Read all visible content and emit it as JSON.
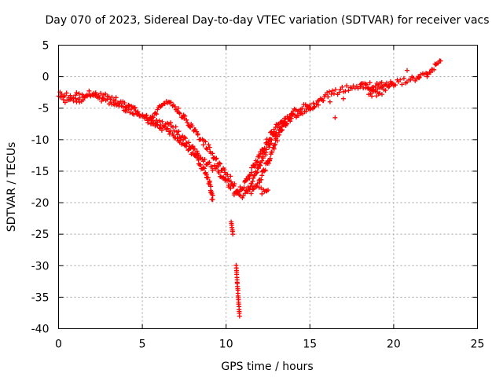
{
  "chart_data": {
    "type": "scatter",
    "title": "Day 070 of 2023, Sidereal Day-to-day VTEC variation (SDTVAR) for receiver vacs",
    "xlabel": "GPS time / hours",
    "ylabel": "SDTVAR / TECUs",
    "xlim": [
      0,
      25
    ],
    "ylim": [
      -40,
      5
    ],
    "xticks": [
      0,
      5,
      10,
      15,
      20,
      25
    ],
    "yticks": [
      5,
      0,
      -5,
      -10,
      -15,
      -20,
      -25,
      -30,
      -35,
      -40
    ],
    "xtick_labels": [
      "0",
      "5",
      "10",
      "15",
      "20",
      "25"
    ],
    "ytick_labels": [
      "5",
      "0",
      "-5",
      "-10",
      "-15",
      "-20",
      "-25",
      "-30",
      "-35",
      "-40"
    ],
    "grid": true,
    "marker": "+",
    "color": "#ff0000",
    "series": [
      {
        "name": "SDTVAR",
        "bands": [
          [
            [
              0.0,
              -2.7
            ],
            [
              1.0,
              -3.0
            ],
            [
              2.0,
              -2.6
            ],
            [
              3.0,
              -3.2
            ],
            [
              4.0,
              -4.5
            ],
            [
              5.0,
              -6.0
            ],
            [
              5.5,
              -6.8
            ],
            [
              6.0,
              -7.2
            ],
            [
              6.5,
              -7.5
            ],
            [
              7.0,
              -8.3
            ],
            [
              7.5,
              -10.0
            ],
            [
              8.0,
              -11.5
            ],
            [
              8.5,
              -13.0
            ],
            [
              9.0,
              -14.0
            ],
            [
              9.5,
              -15.0
            ],
            [
              10.0,
              -16.5
            ],
            [
              10.5,
              -18.0
            ],
            [
              10.8,
              -19.0
            ],
            [
              11.2,
              -18.5
            ],
            [
              11.5,
              -17.0
            ],
            [
              12.0,
              -14.0
            ],
            [
              12.5,
              -11.0
            ],
            [
              13.0,
              -8.5
            ],
            [
              14.0,
              -6.5
            ],
            [
              15.0,
              -5.0
            ],
            [
              16.0,
              -3.0
            ],
            [
              17.0,
              -2.0
            ],
            [
              18.0,
              -1.5
            ],
            [
              19.0,
              -1.3
            ],
            [
              20.0,
              -1.0
            ],
            [
              21.0,
              -0.5
            ],
            [
              22.0,
              0.3
            ],
            [
              22.8,
              2.5
            ]
          ],
          [
            [
              0.0,
              -3.5
            ],
            [
              1.0,
              -3.8
            ],
            [
              2.0,
              -3.0
            ],
            [
              3.0,
              -4.0
            ],
            [
              4.0,
              -5.0
            ],
            [
              5.0,
              -6.5
            ],
            [
              6.0,
              -8.0
            ],
            [
              6.5,
              -8.5
            ],
            [
              7.0,
              -9.5
            ],
            [
              8.0,
              -12.0
            ],
            [
              8.7,
              -15.0
            ],
            [
              9.0,
              -17.0
            ],
            [
              9.2,
              -19.5
            ]
          ],
          [
            [
              5.5,
              -7.0
            ],
            [
              6.0,
              -5.0
            ],
            [
              6.5,
              -4.0
            ],
            [
              7.0,
              -5.0
            ],
            [
              7.5,
              -6.5
            ],
            [
              8.0,
              -8.0
            ],
            [
              8.5,
              -10.0
            ],
            [
              9.0,
              -11.5
            ],
            [
              9.5,
              -13.5
            ],
            [
              10.0,
              -15.5
            ],
            [
              10.5,
              -17.0
            ]
          ],
          [
            [
              10.5,
              -18.5
            ],
            [
              11.0,
              -17.5
            ],
            [
              11.5,
              -15.0
            ],
            [
              12.0,
              -12.5
            ],
            [
              12.5,
              -10.0
            ],
            [
              13.0,
              -8.0
            ],
            [
              14.0,
              -5.5
            ],
            [
              15.0,
              -4.5
            ]
          ],
          [
            [
              11.5,
              -18.5
            ],
            [
              12.0,
              -16.5
            ],
            [
              12.5,
              -13.5
            ],
            [
              13.0,
              -10.0
            ],
            [
              13.5,
              -7.5
            ],
            [
              14.0,
              -6.0
            ]
          ],
          [
            [
              12.0,
              -18.0
            ],
            [
              12.3,
              -18.3
            ],
            [
              12.5,
              -18.0
            ]
          ],
          [
            [
              18.0,
              -1.3
            ],
            [
              19.0,
              -2.3
            ],
            [
              19.5,
              -1.8
            ],
            [
              20.0,
              -1.2
            ]
          ],
          [
            [
              18.5,
              -2.6
            ],
            [
              19.3,
              -2.8
            ]
          ]
        ],
        "spikes": [
          [
            [
              10.3,
              -23.0
            ],
            [
              10.4,
              -25.0
            ]
          ],
          [
            [
              10.6,
              -30.0
            ],
            [
              10.8,
              -38.0
            ]
          ]
        ],
        "points": [
          [
            4.0,
            -4.8
          ],
          [
            15.0,
            -5.2
          ],
          [
            15.2,
            -4.2
          ],
          [
            15.5,
            -4.5
          ],
          [
            15.8,
            -3.8
          ],
          [
            16.2,
            -4.0
          ],
          [
            16.5,
            -6.5
          ],
          [
            17.0,
            -3.5
          ],
          [
            18.0,
            -1.6
          ],
          [
            20.8,
            1.0
          ],
          [
            21.5,
            -0.2
          ],
          [
            22.0,
            0.0
          ]
        ]
      }
    ]
  }
}
